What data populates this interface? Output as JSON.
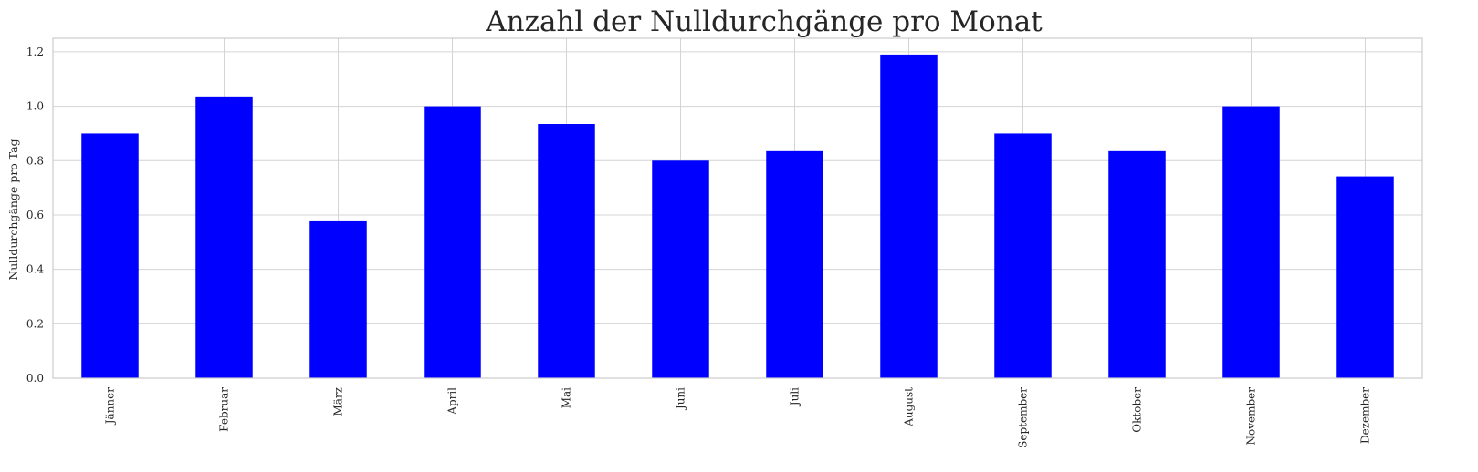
{
  "chart_data": {
    "type": "bar",
    "title": "Anzahl der Nulldurchgänge pro Monat",
    "xlabel": "",
    "ylabel": "Nulldurchgänge pro Tag",
    "categories": [
      "Jänner",
      "Februar",
      "März",
      "April",
      "Mai",
      "Juni",
      "Juli",
      "August",
      "September",
      "Oktober",
      "November",
      "Dezember"
    ],
    "values": [
      0.9,
      1.036,
      0.58,
      1.0,
      0.935,
      0.8,
      0.835,
      1.19,
      0.9,
      0.835,
      1.0,
      0.742
    ],
    "ylim": [
      0,
      1.25
    ],
    "yticks": [
      "0.0",
      "0.2",
      "0.4",
      "0.6",
      "0.8",
      "1.0",
      "1.2"
    ],
    "grid": true,
    "bar_color": "#0000ff",
    "grid_color": "#d4d4d4",
    "frame_color": "#cccccc"
  }
}
